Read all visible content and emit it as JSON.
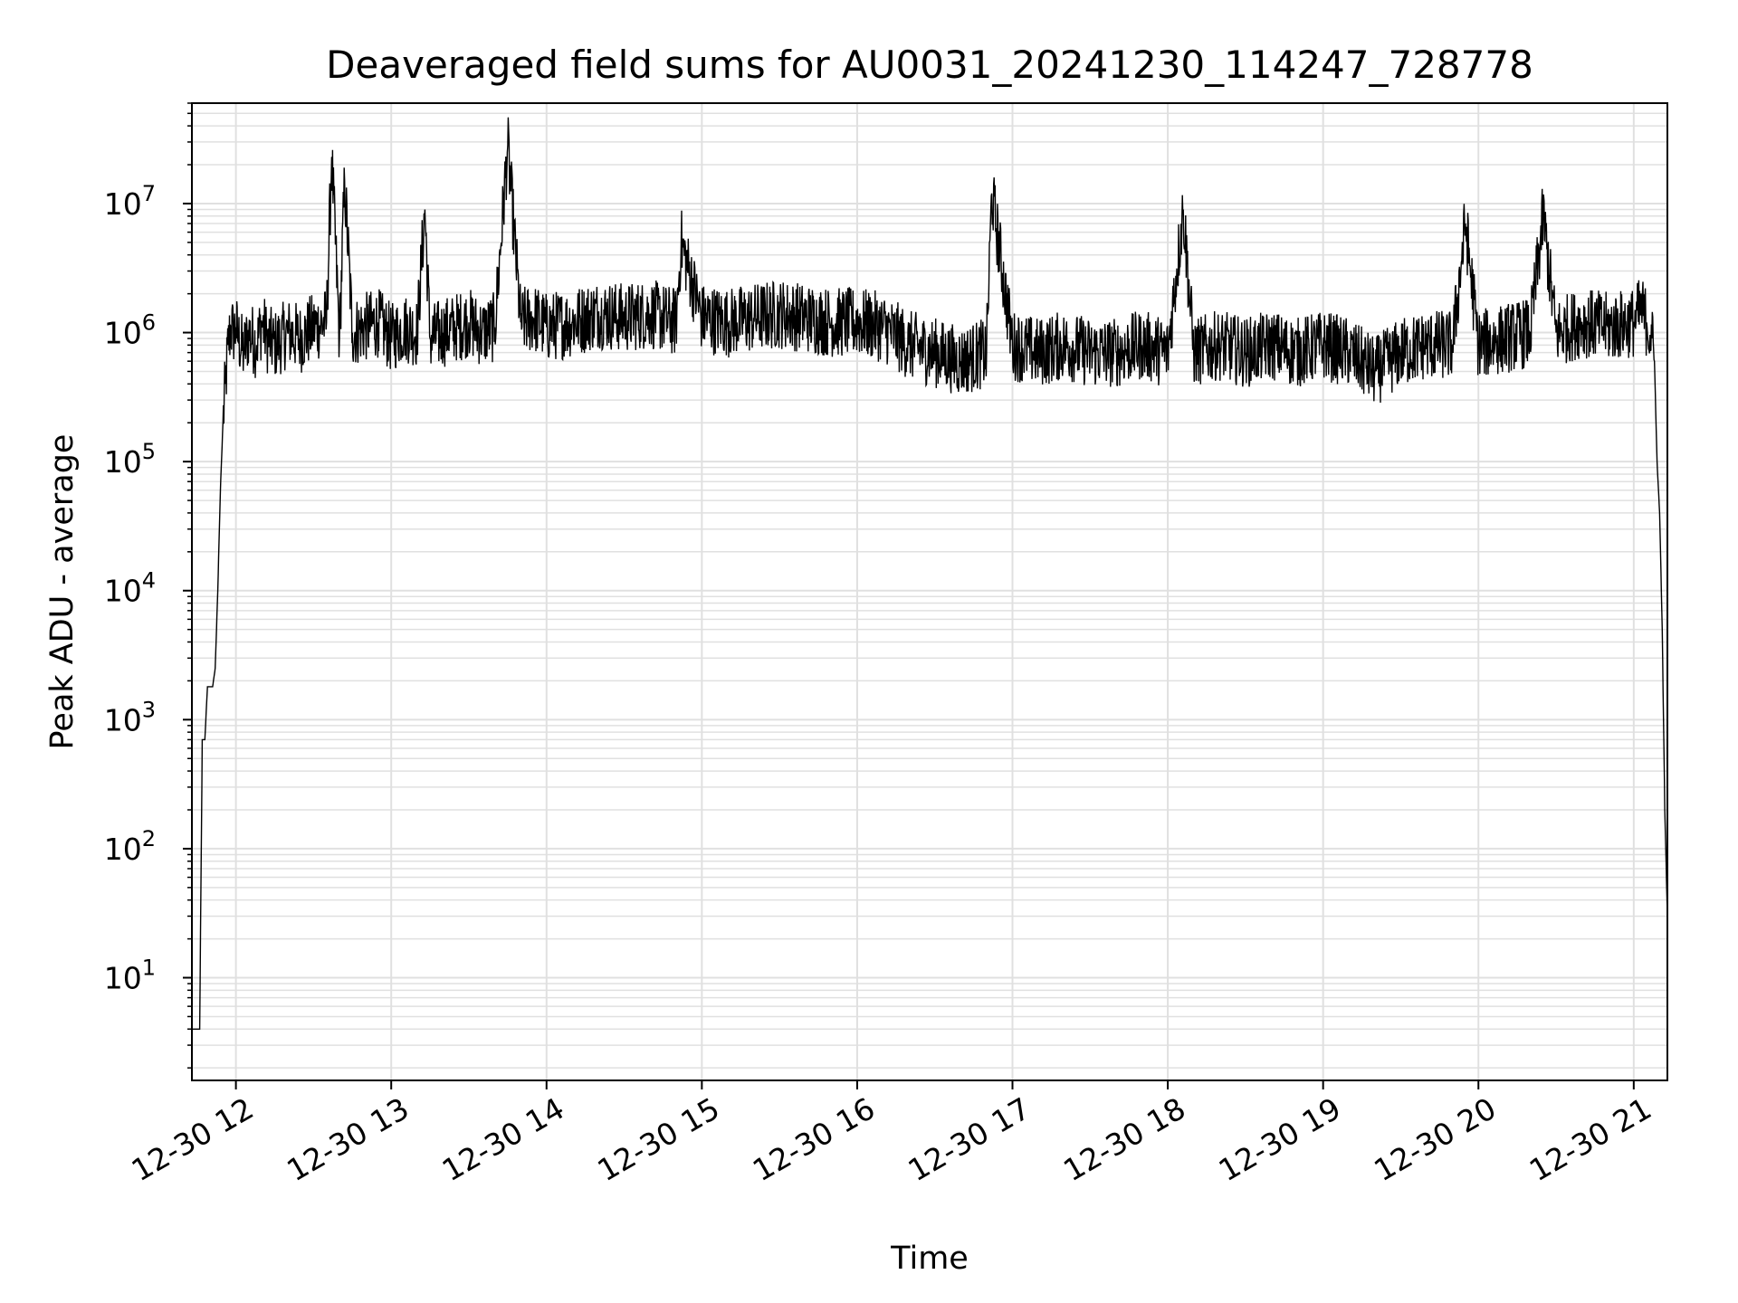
{
  "chart_data": {
    "type": "line",
    "title": "Deaveraged field sums for AU0031_20241230_114247_728778",
    "xlabel": "Time",
    "ylabel": "Peak ADU - average",
    "yscale": "log",
    "ylim": [
      1.6,
      60000000
    ],
    "xlim": [
      "12-30 11:43",
      "12-30 21:13"
    ],
    "grid": true,
    "line_color": "#000000",
    "grid_color": "#e0e0e0",
    "x_ticks": [
      "12-30 12",
      "12-30 13",
      "12-30 14",
      "12-30 15",
      "12-30 16",
      "12-30 17",
      "12-30 18",
      "12-30 19",
      "12-30 20",
      "12-30 21"
    ],
    "y_ticks": [
      {
        "base": "10",
        "exp": "1",
        "value": 10
      },
      {
        "base": "10",
        "exp": "2",
        "value": 100
      },
      {
        "base": "10",
        "exp": "3",
        "value": 1000
      },
      {
        "base": "10",
        "exp": "4",
        "value": 10000
      },
      {
        "base": "10",
        "exp": "5",
        "value": 100000
      },
      {
        "base": "10",
        "exp": "6",
        "value": 1000000
      },
      {
        "base": "10",
        "exp": "7",
        "value": 10000000
      }
    ],
    "series": [
      {
        "x": [
          "12-30 11:43",
          "12-30 11:44",
          "12-30 11:45",
          "12-30 11:46",
          "12-30 11:47",
          "12-30 11:48",
          "12-30 11:49",
          "12-30 11:50",
          "12-30 11:51",
          "12-30 11:52",
          "12-30 11:53",
          "12-30 11:54",
          "12-30 11:55",
          "12-30 11:56",
          "12-30 11:57",
          "12-30 11:58",
          "12-30 11:59",
          "12-30 12:00",
          "12-30 12:01",
          "12-30 12:03",
          "12-30 12:05",
          "12-30 12:08",
          "12-30 12:10",
          "12-30 12:12",
          "12-30 12:15",
          "12-30 12:20",
          "12-30 12:25",
          "12-30 12:30",
          "12-30 12:35",
          "12-30 12:37",
          "12-30 12:40",
          "12-30 12:42",
          "12-30 12:45",
          "12-30 12:50",
          "12-30 12:55",
          "12-30 13:00",
          "12-30 13:05",
          "12-30 13:10",
          "12-30 13:13",
          "12-30 13:15",
          "12-30 13:20",
          "12-30 13:25",
          "12-30 13:30",
          "12-30 13:35",
          "12-30 13:40",
          "12-30 13:45",
          "12-30 13:50",
          "12-30 13:55",
          "12-30 14:00",
          "12-30 14:10",
          "12-30 14:20",
          "12-30 14:30",
          "12-30 14:40",
          "12-30 14:50",
          "12-30 14:52",
          "12-30 15:00",
          "12-30 15:10",
          "12-30 15:20",
          "12-30 15:30",
          "12-30 15:40",
          "12-30 15:50",
          "12-30 16:00",
          "12-30 16:10",
          "12-30 16:20",
          "12-30 16:30",
          "12-30 16:40",
          "12-30 16:50",
          "12-30 16:52",
          "12-30 17:00",
          "12-30 17:10",
          "12-30 17:20",
          "12-30 17:30",
          "12-30 17:40",
          "12-30 17:50",
          "12-30 18:00",
          "12-30 18:06",
          "12-30 18:10",
          "12-30 18:20",
          "12-30 18:30",
          "12-30 18:40",
          "12-30 18:50",
          "12-30 19:00",
          "12-30 19:10",
          "12-30 19:20",
          "12-30 19:30",
          "12-30 19:40",
          "12-30 19:50",
          "12-30 19:55",
          "12-30 20:00",
          "12-30 20:10",
          "12-30 20:20",
          "12-30 20:25",
          "12-30 20:30",
          "12-30 20:40",
          "12-30 20:50",
          "12-30 21:00",
          "12-30 21:03",
          "12-30 21:05",
          "12-30 21:07",
          "12-30 21:08",
          "12-30 21:09",
          "12-30 21:10",
          "12-30 21:11",
          "12-30 21:12",
          "12-30 21:13"
        ],
        "y": [
          4,
          4,
          4,
          4,
          700,
          700,
          1800,
          1800,
          1800,
          2500,
          10000,
          60000,
          200000,
          400000,
          800000,
          1100000,
          1000000,
          1100000,
          900000,
          700000,
          1000000,
          800000,
          1200000,
          900000,
          800000,
          1000000,
          900000,
          1100000,
          1200000,
          23000000,
          900000,
          15000000,
          1000000,
          1100000,
          1200000,
          900000,
          1100000,
          1000000,
          9000000,
          900000,
          1000000,
          1100000,
          1200000,
          1000000,
          1100000,
          28000000,
          1200000,
          1300000,
          1100000,
          1200000,
          1400000,
          1300000,
          1400000,
          1200000,
          5000000,
          1300000,
          1200000,
          1300000,
          1400000,
          1300000,
          1200000,
          1200000,
          1100000,
          800000,
          700000,
          600000,
          700000,
          12000000,
          800000,
          700000,
          800000,
          700000,
          700000,
          800000,
          700000,
          9000000,
          700000,
          800000,
          700000,
          800000,
          700000,
          800000,
          700000,
          500000,
          700000,
          800000,
          800000,
          7000000,
          800000,
          900000,
          1000000,
          8000000,
          1000000,
          1200000,
          1100000,
          1200000,
          1500000,
          1200000,
          900000,
          600000,
          100000,
          40000,
          5000,
          200,
          30
        ]
      }
    ]
  }
}
